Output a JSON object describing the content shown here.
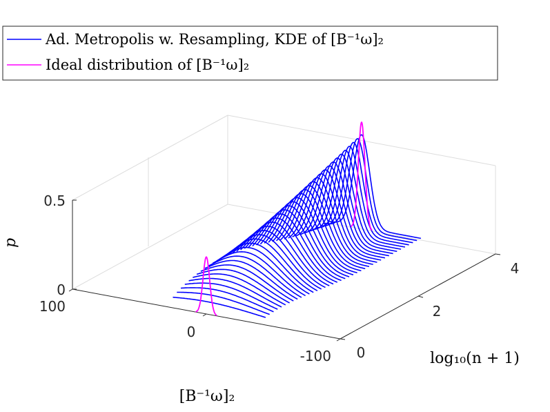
{
  "chart_data": {
    "type": "3d-line",
    "legend": [
      {
        "label": "Ad. Metropolis w. Resampling, KDE of [B⁻¹ω]₂",
        "color": "#0000ff"
      },
      {
        "label": "Ideal distribution of [B⁻¹ω]₂",
        "color": "#ff00ff"
      }
    ],
    "xlabel": "[B⁻¹ω]₂",
    "ylabel": "log₁₀(n + 1)",
    "zlabel": "p",
    "xlim": [
      -100,
      100
    ],
    "ylim": [
      0,
      4
    ],
    "zlim": [
      0,
      0.5
    ],
    "x_ticks": [
      "100",
      "0",
      "-100"
    ],
    "y_ticks": [
      "0",
      "2",
      "4"
    ],
    "z_ticks": [
      "0",
      "0.5"
    ],
    "series": [
      {
        "name": "Ad. Metropolis w. Resampling, KDE of [B⁻¹ω]₂",
        "y_range": [
          0,
          4
        ],
        "curve_count": 40,
        "peak_p_start": 0.06,
        "peak_p_end": 0.52,
        "center_x": 0,
        "width_start": 40,
        "width_end": 6
      },
      {
        "name": "Ideal distribution of [B⁻¹ω]₂",
        "y": [
          0,
          4
        ],
        "peak_p": [
          0.32,
          0.6
        ],
        "center_x": 0,
        "width": 2.5
      }
    ]
  }
}
